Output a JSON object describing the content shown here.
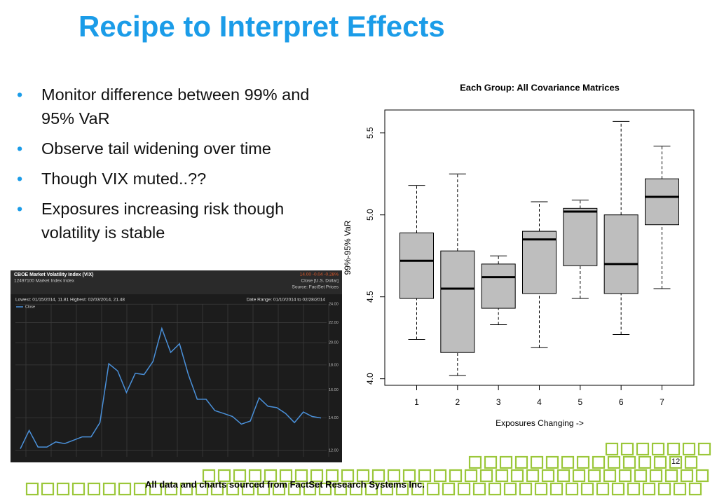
{
  "title": "Recipe to Interpret Effects",
  "bullets": [
    "Monitor difference between 99% and 95% VaR",
    "Observe tail widening over time",
    "Though VIX muted..??",
    "Exposures increasing risk though volatility is stable"
  ],
  "footer": "All data and charts sourced from FactSet Research Systems Inc.",
  "page_number": "12",
  "chart_data": [
    {
      "type": "box",
      "title": "Each Group: All Covariance Matrices",
      "x_label": "Exposures Changing ->",
      "y_label": "99%-95% VaR",
      "categories": [
        "1",
        "2",
        "3",
        "4",
        "5",
        "6",
        "7"
      ],
      "min": [
        4.24,
        4.02,
        4.33,
        4.19,
        4.49,
        4.27,
        4.55
      ],
      "q1": [
        4.49,
        4.16,
        4.43,
        4.52,
        4.69,
        4.52,
        4.94
      ],
      "median": [
        4.72,
        4.55,
        4.62,
        4.85,
        5.02,
        4.7,
        5.11
      ],
      "q3": [
        4.89,
        4.78,
        4.7,
        4.9,
        5.04,
        5.0,
        5.22
      ],
      "max": [
        5.18,
        5.25,
        4.75,
        5.08,
        5.09,
        5.57,
        5.42
      ],
      "color": "#bebebe",
      "ylim": [
        3.96,
        5.64
      ],
      "yticks": [
        {
          "value": 4,
          "label": "4.0"
        },
        {
          "value": 4.5,
          "label": "4.5"
        },
        {
          "value": 5,
          "label": "5.0"
        },
        {
          "value": 5.5,
          "label": "5.5"
        }
      ]
    },
    {
      "type": "line",
      "title": "CBOE Market Volatility Index (VIX)",
      "subtitle": "12497100  Market Index  Index",
      "annotations": [
        "14.00 -0.04 -0.28%",
        "Close [U.S. Dollar]",
        "Source: FactSet Prices",
        "Lowest: 01/15/2014, 11.81   Highest: 02/03/2014, 21.48",
        "Date Range: 01/10/2014 to 02/28/2014"
      ],
      "series": [
        {
          "name": "Close",
          "color": "#4a90d9",
          "values": [
            12.1,
            13.2,
            12.2,
            12.2,
            12.5,
            12.4,
            12.6,
            12.8,
            12.8,
            13.7,
            18.1,
            17.5,
            15.8,
            17.3,
            17.2,
            18.3,
            21.4,
            19.1,
            19.9,
            17.2,
            15.3,
            15.3,
            14.5,
            14.3,
            14.1,
            13.6,
            13.8,
            15.4,
            14.8,
            14.7,
            14.3,
            13.7,
            14.4,
            14.1,
            14.0
          ]
        }
      ],
      "ylog": true,
      "ylim": [
        11.65,
        24.5
      ],
      "yticks": [
        {
          "value": 12,
          "label": "12.00"
        },
        {
          "value": 14,
          "label": "14.00"
        },
        {
          "value": 16,
          "label": "16.00"
        },
        {
          "value": 18,
          "label": "18.00"
        },
        {
          "value": 20,
          "label": "20.00"
        },
        {
          "value": 22,
          "label": "22.00"
        },
        {
          "value": 24,
          "label": "24.00"
        }
      ],
      "grid": true
    }
  ]
}
